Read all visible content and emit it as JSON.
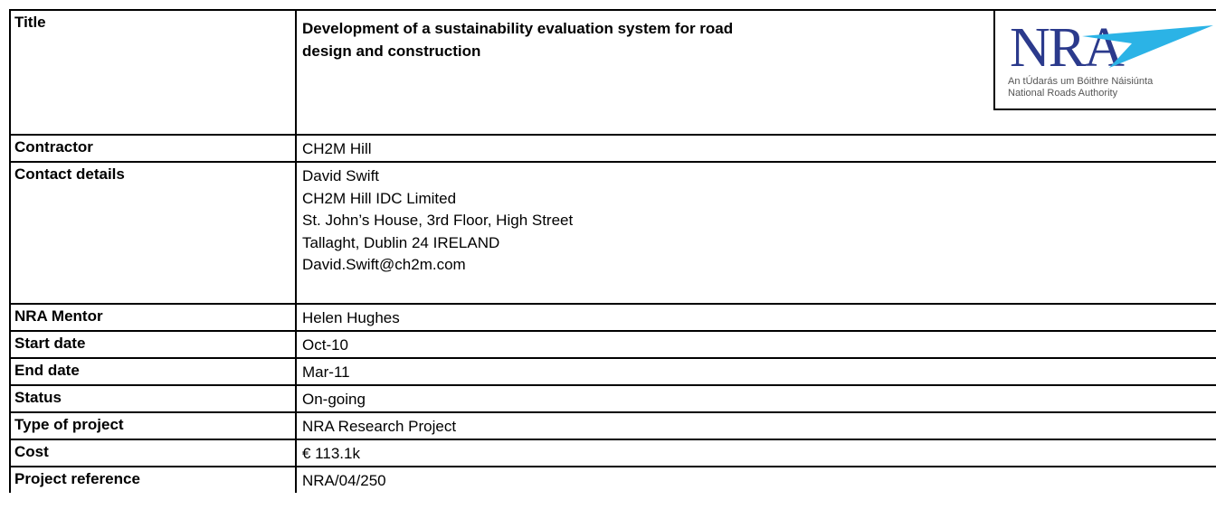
{
  "logo": {
    "mark": "NRA",
    "irish_name": "An tÚdarás um Bóithre Náisiúnta",
    "english_name": "National Roads Authority"
  },
  "table": {
    "rows": [
      [
        "Title",
        [
          "Development of a sustainability evaluation system for road",
          "design and construction"
        ]
      ],
      [
        "Contractor",
        [
          "CH2M Hill"
        ]
      ],
      [
        "Contact details",
        [
          "David Swift",
          "CH2M Hill IDC Limited",
          "St. John’s House, 3rd Floor, High Street",
          "Tallaght, Dublin 24 IRELAND",
          "David.Swift@ch2m.com"
        ]
      ],
      [
        "NRA Mentor",
        [
          "Helen Hughes"
        ]
      ],
      [
        "Start date",
        [
          "Oct-10"
        ]
      ],
      [
        "End date",
        [
          "Mar-11"
        ]
      ],
      [
        "Status",
        [
          "On-going"
        ]
      ],
      [
        "Type of project",
        [
          "NRA Research Project"
        ]
      ],
      [
        "Cost",
        [
          "€ 113.1k"
        ]
      ],
      [
        "Project reference",
        [
          "NRA/04/250"
        ]
      ]
    ]
  }
}
